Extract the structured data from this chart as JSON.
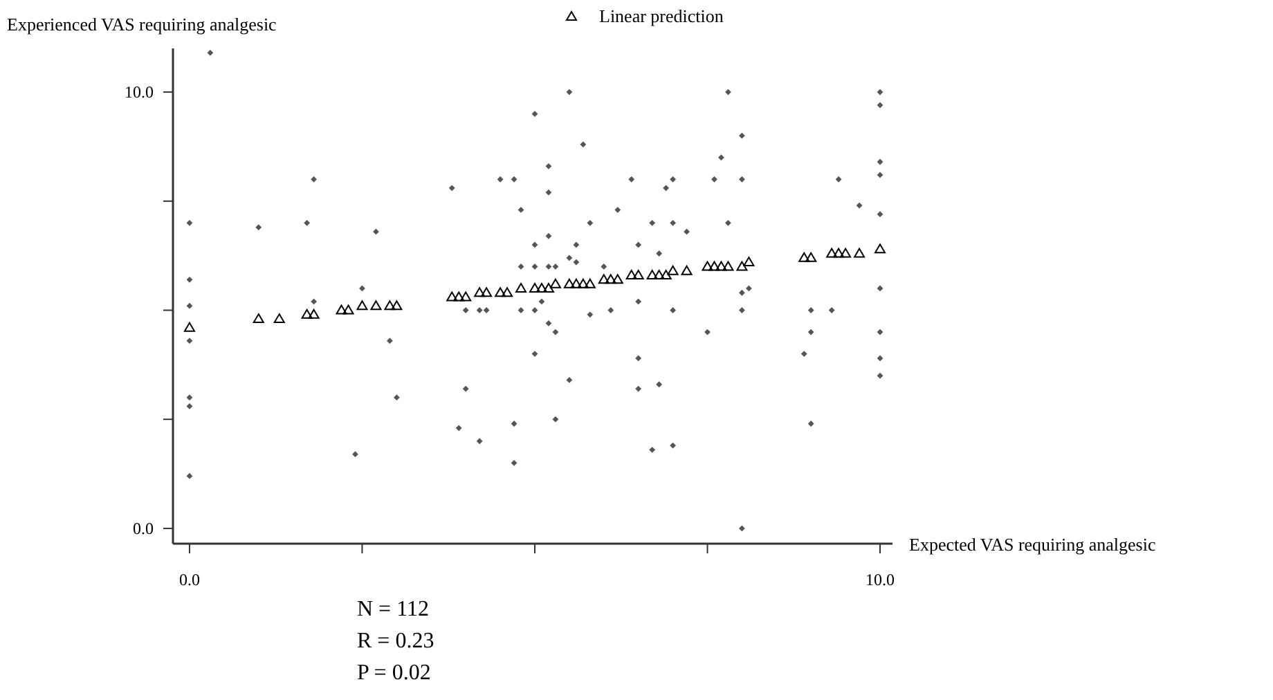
{
  "chart_data": {
    "type": "scatter",
    "xlabel": "Expected VAS requiring analgesic",
    "ylabel": "Experienced VAS requiring analgesic",
    "xlim": [
      -0.24,
      10.18
    ],
    "ylim": [
      -0.35,
      11
    ],
    "xticks": [
      {
        "value": 0,
        "label": "0.0"
      },
      {
        "value": 2.5,
        "label": null
      },
      {
        "value": 5,
        "label": null
      },
      {
        "value": 7.5,
        "label": null
      },
      {
        "value": 10,
        "label": "10.0"
      }
    ],
    "yticks": [
      {
        "value": 0,
        "label": "0.0"
      },
      {
        "value": 2.5,
        "label": null
      },
      {
        "value": 5,
        "label": null
      },
      {
        "value": 7.5,
        "label": null
      },
      {
        "value": 10,
        "label": "10.0"
      }
    ],
    "grid": false,
    "legend": "top",
    "annotations": [
      "N = 112",
      "R = 0.23",
      "P = 0.02"
    ],
    "series": [
      {
        "color": "#555555",
        "marker": "diamond",
        "x": [
          0.3,
          0,
          0,
          1.0,
          1.8,
          1.7,
          2.7,
          2.5,
          3.8,
          4.5,
          4.7,
          4.8,
          5.0,
          5.0,
          4.8,
          5.0,
          5.2,
          5.2,
          5.2,
          5.2,
          5.3,
          5.5,
          5.7,
          5.6,
          5.6,
          5.5,
          5.8,
          6.0,
          6.2,
          6.4,
          6.5,
          6.7,
          6.8,
          6.9,
          7.0,
          7.0,
          7.2,
          7.6,
          7.7,
          7.8,
          8.0,
          8.0,
          7.8,
          8.0,
          8.1,
          9.4,
          9.7,
          10,
          10,
          10,
          10,
          10,
          10,
          0,
          0,
          0,
          0,
          0,
          1.8,
          2.4,
          2.9,
          3.0,
          4.0,
          4.2,
          4.3,
          4.0,
          3.9,
          4.2,
          4.7,
          4.7,
          4.8,
          5.0,
          5.0,
          5.1,
          5.2,
          5.3,
          5.3,
          5.5,
          5.8,
          6.1,
          6.5,
          6.5,
          6.5,
          6.8,
          6.7,
          7.0,
          7.0,
          7.5,
          8.0,
          8.0,
          8.9,
          9.0,
          9.0,
          9.0,
          9.3,
          10,
          10,
          10
        ],
        "values": [
          10.9,
          7.0,
          5.7,
          6.9,
          8.0,
          7.0,
          6.8,
          5.5,
          7.8,
          8.0,
          8.0,
          7.3,
          9.5,
          6.5,
          6.0,
          6.0,
          6.0,
          8.3,
          7.7,
          6.7,
          6.0,
          10.0,
          8.8,
          6.5,
          6.1,
          6.2,
          7.0,
          6.0,
          7.3,
          8.0,
          6.5,
          7.0,
          6.3,
          7.8,
          8.0,
          7.0,
          6.8,
          8.0,
          8.5,
          10.0,
          9.0,
          8.0,
          7.0,
          5.4,
          5.5,
          8.0,
          7.4,
          10.0,
          9.7,
          8.4,
          8.1,
          7.2,
          5.5,
          5.1,
          4.3,
          3.0,
          2.8,
          1.2,
          5.2,
          1.7,
          4.3,
          3.0,
          5.0,
          5.0,
          5.0,
          3.2,
          2.3,
          2.0,
          2.4,
          1.5,
          5.0,
          5.0,
          4.0,
          5.2,
          4.7,
          4.5,
          2.5,
          3.4,
          4.9,
          5.0,
          5.2,
          3.9,
          3.2,
          3.3,
          1.8,
          1.9,
          5.0,
          4.5,
          5.0,
          0.0,
          4.0,
          5.0,
          4.5,
          2.4,
          5.0,
          4.5,
          3.9,
          3.5
        ]
      },
      {
        "name": "Linear prediction",
        "color": "#000000",
        "marker": "triangle",
        "x": [
          0,
          1.0,
          1.3,
          1.7,
          1.8,
          2.2,
          2.3,
          2.5,
          2.7,
          2.9,
          3.0,
          3.8,
          3.9,
          4.0,
          4.2,
          4.3,
          4.5,
          4.6,
          4.8,
          5.0,
          5.1,
          5.2,
          5.3,
          5.5,
          5.6,
          5.7,
          5.8,
          6.0,
          6.1,
          6.2,
          6.4,
          6.5,
          6.7,
          6.8,
          6.9,
          7.0,
          7.2,
          7.5,
          7.6,
          7.7,
          7.8,
          8.0,
          8.1,
          8.9,
          9.0,
          9.3,
          9.4,
          9.5,
          9.7,
          10
        ],
        "values": [
          4.6,
          4.8,
          4.8,
          4.9,
          4.9,
          5.0,
          5.0,
          5.1,
          5.1,
          5.1,
          5.1,
          5.3,
          5.3,
          5.3,
          5.4,
          5.4,
          5.4,
          5.4,
          5.5,
          5.5,
          5.5,
          5.5,
          5.6,
          5.6,
          5.6,
          5.6,
          5.6,
          5.7,
          5.7,
          5.7,
          5.8,
          5.8,
          5.8,
          5.8,
          5.8,
          5.9,
          5.9,
          6.0,
          6.0,
          6.0,
          6.0,
          6.0,
          6.1,
          6.2,
          6.2,
          6.3,
          6.3,
          6.3,
          6.3,
          6.4
        ]
      }
    ]
  }
}
